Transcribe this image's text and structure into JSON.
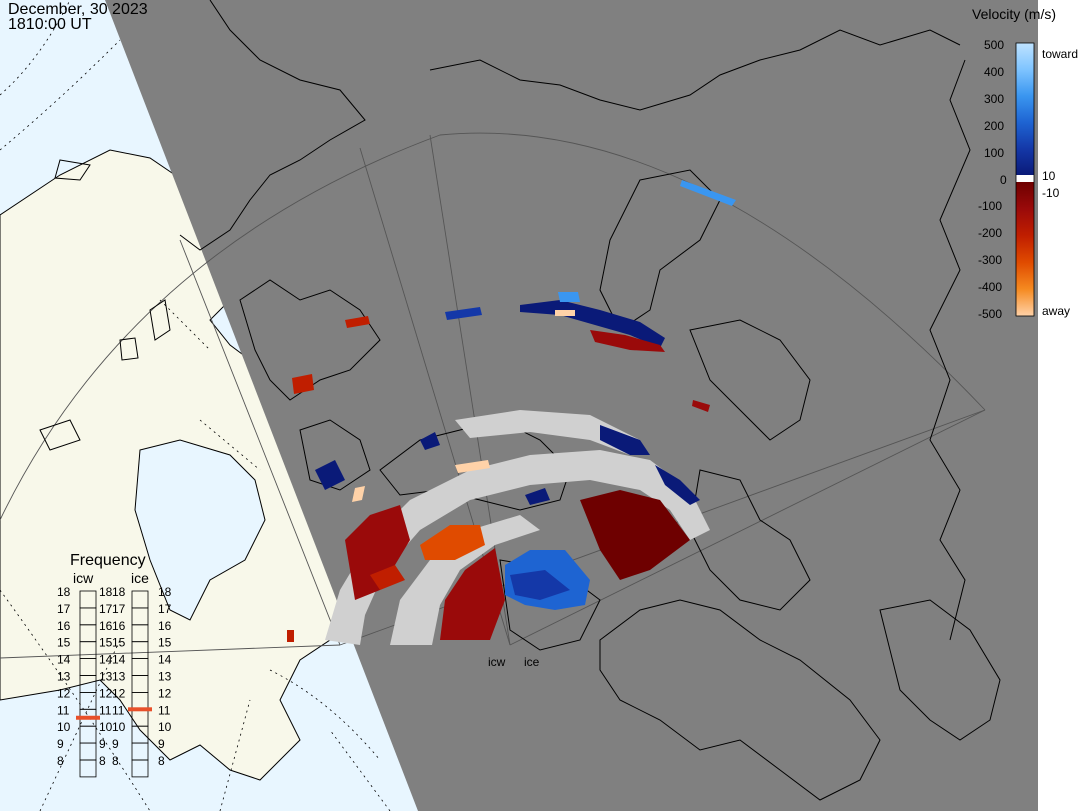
{
  "header": {
    "date": "December, 30 2023",
    "time": "1810:00 UT"
  },
  "velocity_scale": {
    "title": "Velocity (m/s)",
    "ticks": [
      "500",
      "400",
      "300",
      "200",
      "100",
      "10",
      "0",
      "-10",
      "-100",
      "-200",
      "-300",
      "-400",
      "-500"
    ],
    "toward_label": "toward",
    "away_label": "away",
    "colors": {
      "toward": [
        "#bfe3ff",
        "#7fc4ff",
        "#3a96f0",
        "#1e64d2",
        "#1438a8",
        "#0a1a78"
      ],
      "away": [
        "#6e0000",
        "#9a0a0a",
        "#c01e00",
        "#e04b00",
        "#f58a20",
        "#ffd2a8"
      ],
      "zero": "#ffffff"
    }
  },
  "frequency_panel": {
    "title": "Frequency",
    "stations": [
      {
        "name": "icw",
        "frequency_mhz": 10.5
      },
      {
        "name": "ice",
        "frequency_mhz": 11.0
      }
    ],
    "scale": [
      "18",
      "17",
      "16",
      "15",
      "14",
      "13",
      "12",
      "11",
      "10",
      "9",
      "8"
    ],
    "marker_color": "#e8502a"
  },
  "radar_sites": [
    "icw",
    "ice"
  ],
  "map": {
    "night_color": "#808080",
    "day_land_color": "#f8f8ea",
    "day_ocean_color": "#e8f6ff",
    "ground_scatter_color": "#d0d0d0",
    "coastline_color": "#000000"
  }
}
